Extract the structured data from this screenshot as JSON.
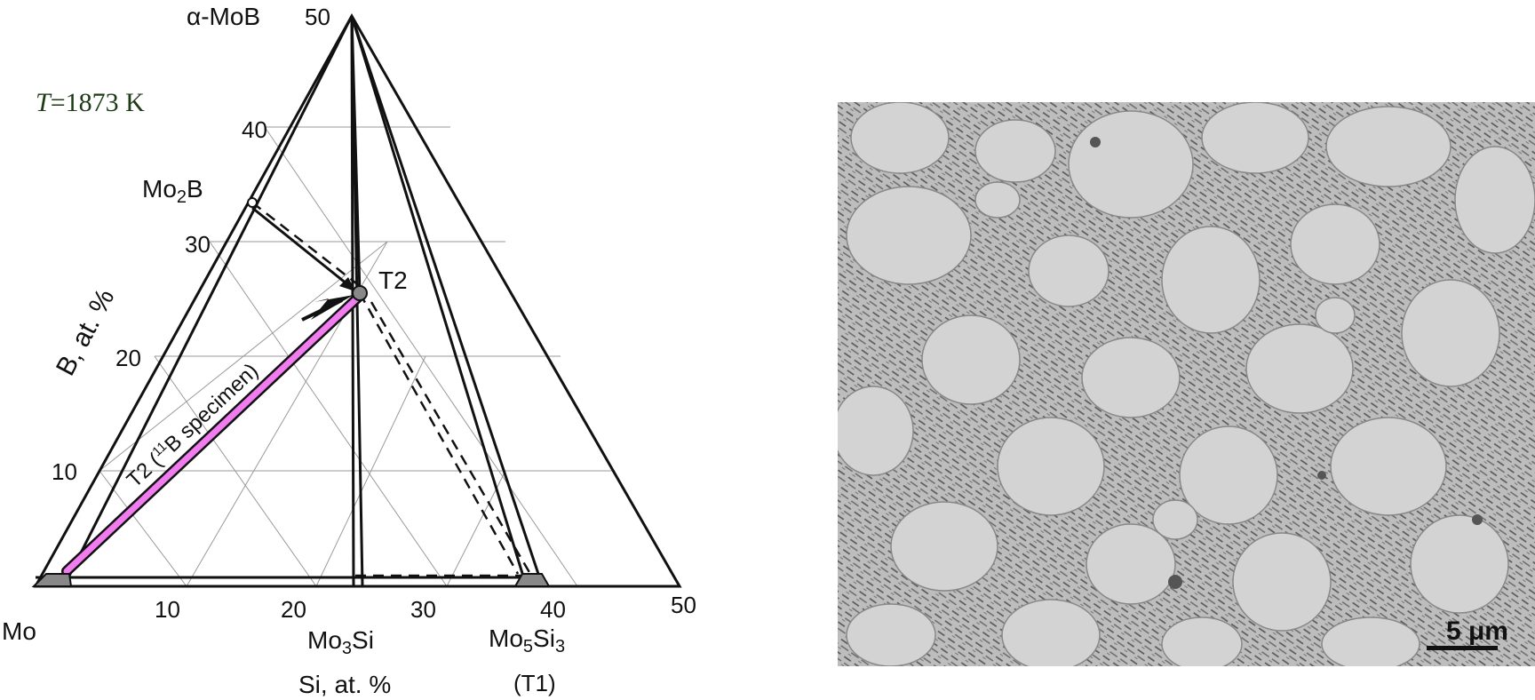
{
  "temperature": {
    "italic": "T",
    "rest": "=1873 K"
  },
  "vertices": {
    "top": "α-MoB",
    "left": "Mo",
    "mo2b": {
      "base": "Mo",
      "sub": "2",
      "end": "B"
    },
    "mo3si": {
      "base": "Mo",
      "sub": "3",
      "end": "Si"
    },
    "mo5si3": {
      "base": "Mo",
      "sub": "5",
      "mid": "Si",
      "sub2": "3"
    },
    "t1": "(T1)",
    "t2": "T2"
  },
  "axes": {
    "b_label": "B, at. %",
    "si_label": "Si, at. %",
    "b_ticks": [
      "10",
      "20",
      "30",
      "40",
      "50"
    ],
    "si_ticks": [
      "10",
      "20",
      "30",
      "40",
      "50"
    ]
  },
  "specimen_label": {
    "pre": "T2 (",
    "sup": "11",
    "post": "B specimen)"
  },
  "micrograph": {
    "scale": "5 μm"
  }
}
